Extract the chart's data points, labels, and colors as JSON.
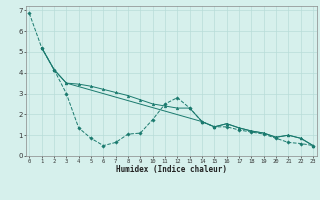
{
  "xlabel": "Humidex (Indice chaleur)",
  "background_color": "#d6f0ec",
  "grid_color": "#b8ddd8",
  "line_color": "#1a7a6e",
  "xlim": [
    -0.3,
    23.3
  ],
  "ylim": [
    0,
    7.2
  ],
  "xticks": [
    0,
    1,
    2,
    3,
    4,
    5,
    6,
    7,
    8,
    9,
    10,
    11,
    12,
    13,
    14,
    15,
    16,
    17,
    18,
    19,
    20,
    21,
    22,
    23
  ],
  "yticks": [
    0,
    1,
    2,
    3,
    4,
    5,
    6,
    7
  ],
  "series1_x": [
    0,
    1,
    2,
    3,
    4,
    5,
    6,
    7,
    8,
    9,
    10,
    11,
    12,
    13,
    14,
    15,
    16,
    17,
    18,
    19,
    20,
    21,
    22,
    23
  ],
  "series1_y": [
    6.85,
    5.2,
    4.15,
    3.0,
    1.35,
    0.85,
    0.5,
    0.65,
    1.05,
    1.1,
    1.75,
    2.5,
    2.8,
    2.3,
    1.65,
    1.4,
    1.4,
    1.25,
    1.15,
    1.05,
    0.85,
    0.65,
    0.6,
    0.5
  ],
  "series2_x": [
    1,
    2,
    3,
    4,
    5,
    6,
    7,
    8,
    9,
    10,
    11,
    12,
    13,
    14,
    15,
    16,
    17,
    18,
    19,
    20,
    21,
    22,
    23
  ],
  "series2_y": [
    5.2,
    4.15,
    3.5,
    3.45,
    3.35,
    3.2,
    3.05,
    2.9,
    2.7,
    2.5,
    2.4,
    2.3,
    2.3,
    1.65,
    1.4,
    1.55,
    1.35,
    1.2,
    1.1,
    0.9,
    1.0,
    0.85,
    0.5
  ],
  "series3_x": [
    1,
    2,
    3,
    14,
    15,
    16,
    17,
    18,
    19,
    20,
    21,
    22,
    23
  ],
  "series3_y": [
    5.2,
    4.15,
    3.5,
    1.65,
    1.4,
    1.55,
    1.35,
    1.2,
    1.1,
    0.9,
    1.0,
    0.85,
    0.5
  ]
}
